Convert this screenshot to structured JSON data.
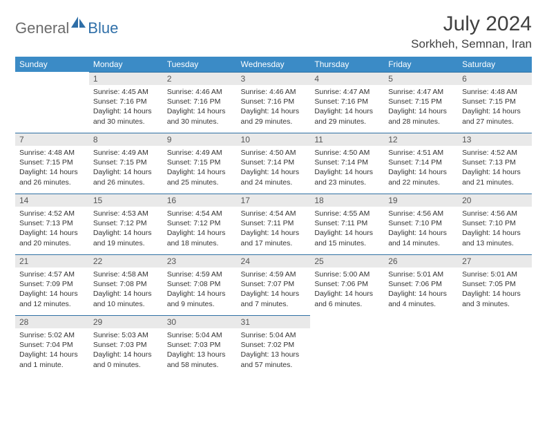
{
  "logo": {
    "general": "General",
    "blue": "Blue"
  },
  "title": "July 2024",
  "location": "Sorkheh, Semnan, Iran",
  "colors": {
    "header_bg": "#3b8bc6",
    "header_text": "#ffffff",
    "daynum_bg": "#e9e9e9",
    "border_top": "#2d6fa3",
    "logo_gray": "#6b6b6b",
    "logo_blue": "#2f6fa8"
  },
  "weekdays": [
    "Sunday",
    "Monday",
    "Tuesday",
    "Wednesday",
    "Thursday",
    "Friday",
    "Saturday"
  ],
  "weeks": [
    [
      null,
      {
        "n": "1",
        "sr": "4:45 AM",
        "ss": "7:16 PM",
        "dl": "14 hours and 30 minutes."
      },
      {
        "n": "2",
        "sr": "4:46 AM",
        "ss": "7:16 PM",
        "dl": "14 hours and 30 minutes."
      },
      {
        "n": "3",
        "sr": "4:46 AM",
        "ss": "7:16 PM",
        "dl": "14 hours and 29 minutes."
      },
      {
        "n": "4",
        "sr": "4:47 AM",
        "ss": "7:16 PM",
        "dl": "14 hours and 29 minutes."
      },
      {
        "n": "5",
        "sr": "4:47 AM",
        "ss": "7:15 PM",
        "dl": "14 hours and 28 minutes."
      },
      {
        "n": "6",
        "sr": "4:48 AM",
        "ss": "7:15 PM",
        "dl": "14 hours and 27 minutes."
      }
    ],
    [
      {
        "n": "7",
        "sr": "4:48 AM",
        "ss": "7:15 PM",
        "dl": "14 hours and 26 minutes."
      },
      {
        "n": "8",
        "sr": "4:49 AM",
        "ss": "7:15 PM",
        "dl": "14 hours and 26 minutes."
      },
      {
        "n": "9",
        "sr": "4:49 AM",
        "ss": "7:15 PM",
        "dl": "14 hours and 25 minutes."
      },
      {
        "n": "10",
        "sr": "4:50 AM",
        "ss": "7:14 PM",
        "dl": "14 hours and 24 minutes."
      },
      {
        "n": "11",
        "sr": "4:50 AM",
        "ss": "7:14 PM",
        "dl": "14 hours and 23 minutes."
      },
      {
        "n": "12",
        "sr": "4:51 AM",
        "ss": "7:14 PM",
        "dl": "14 hours and 22 minutes."
      },
      {
        "n": "13",
        "sr": "4:52 AM",
        "ss": "7:13 PM",
        "dl": "14 hours and 21 minutes."
      }
    ],
    [
      {
        "n": "14",
        "sr": "4:52 AM",
        "ss": "7:13 PM",
        "dl": "14 hours and 20 minutes."
      },
      {
        "n": "15",
        "sr": "4:53 AM",
        "ss": "7:12 PM",
        "dl": "14 hours and 19 minutes."
      },
      {
        "n": "16",
        "sr": "4:54 AM",
        "ss": "7:12 PM",
        "dl": "14 hours and 18 minutes."
      },
      {
        "n": "17",
        "sr": "4:54 AM",
        "ss": "7:11 PM",
        "dl": "14 hours and 17 minutes."
      },
      {
        "n": "18",
        "sr": "4:55 AM",
        "ss": "7:11 PM",
        "dl": "14 hours and 15 minutes."
      },
      {
        "n": "19",
        "sr": "4:56 AM",
        "ss": "7:10 PM",
        "dl": "14 hours and 14 minutes."
      },
      {
        "n": "20",
        "sr": "4:56 AM",
        "ss": "7:10 PM",
        "dl": "14 hours and 13 minutes."
      }
    ],
    [
      {
        "n": "21",
        "sr": "4:57 AM",
        "ss": "7:09 PM",
        "dl": "14 hours and 12 minutes."
      },
      {
        "n": "22",
        "sr": "4:58 AM",
        "ss": "7:08 PM",
        "dl": "14 hours and 10 minutes."
      },
      {
        "n": "23",
        "sr": "4:59 AM",
        "ss": "7:08 PM",
        "dl": "14 hours and 9 minutes."
      },
      {
        "n": "24",
        "sr": "4:59 AM",
        "ss": "7:07 PM",
        "dl": "14 hours and 7 minutes."
      },
      {
        "n": "25",
        "sr": "5:00 AM",
        "ss": "7:06 PM",
        "dl": "14 hours and 6 minutes."
      },
      {
        "n": "26",
        "sr": "5:01 AM",
        "ss": "7:06 PM",
        "dl": "14 hours and 4 minutes."
      },
      {
        "n": "27",
        "sr": "5:01 AM",
        "ss": "7:05 PM",
        "dl": "14 hours and 3 minutes."
      }
    ],
    [
      {
        "n": "28",
        "sr": "5:02 AM",
        "ss": "7:04 PM",
        "dl": "14 hours and 1 minute."
      },
      {
        "n": "29",
        "sr": "5:03 AM",
        "ss": "7:03 PM",
        "dl": "14 hours and 0 minutes."
      },
      {
        "n": "30",
        "sr": "5:04 AM",
        "ss": "7:03 PM",
        "dl": "13 hours and 58 minutes."
      },
      {
        "n": "31",
        "sr": "5:04 AM",
        "ss": "7:02 PM",
        "dl": "13 hours and 57 minutes."
      },
      null,
      null,
      null
    ]
  ],
  "labels": {
    "sunrise": "Sunrise:",
    "sunset": "Sunset:",
    "daylight": "Daylight:"
  }
}
